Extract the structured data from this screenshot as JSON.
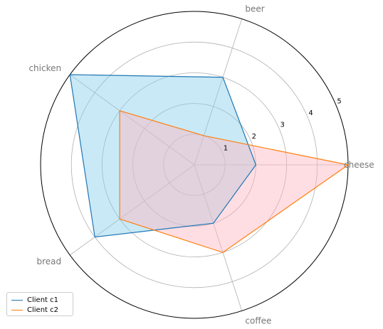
{
  "chart_data": {
    "type": "radar",
    "categories": [
      "cheese",
      "beer",
      "chicken",
      "bread",
      "coffee"
    ],
    "radial_ticks": [
      "1",
      "2",
      "3",
      "4",
      "5"
    ],
    "rmax": 5,
    "grid": true,
    "legend_position": "bottom-left",
    "series": [
      {
        "name": "Client c1",
        "values": [
          2,
          3,
          5,
          4,
          2
        ],
        "color": "#1f77b4",
        "fill": "#87ceeb"
      },
      {
        "name": "Client c2",
        "values": [
          5,
          1,
          3,
          3,
          3
        ],
        "color": "#ff7f0e",
        "fill": "#ffb6c1"
      }
    ]
  }
}
